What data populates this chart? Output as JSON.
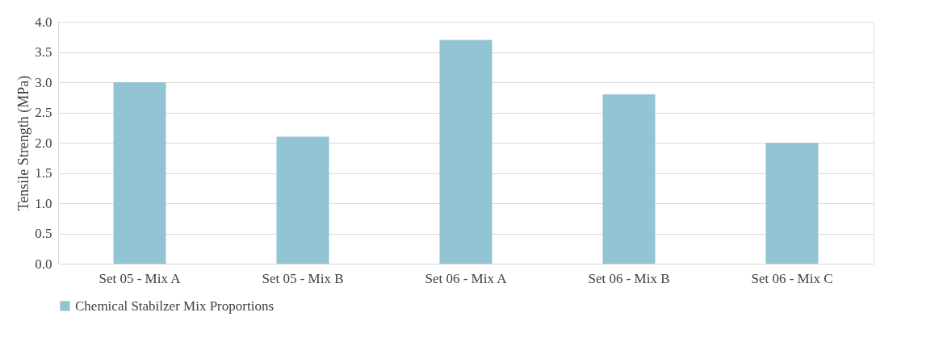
{
  "chart_data": {
    "type": "bar",
    "ylabel": "Tensile Strength (MPa)",
    "categories": [
      "Set 05 - Mix A",
      "Set 05 - Mix B",
      "Set 06 - Mix A",
      "Set 06 - Mix B",
      "Set 06 - Mix C"
    ],
    "series": [
      {
        "name": "Chemical Stabilzer Mix Proportions",
        "color": "#92c4d3",
        "values": [
          3.0,
          2.1,
          3.7,
          2.8,
          2.0
        ]
      }
    ],
    "ylim": [
      0,
      4
    ],
    "yticks": [
      {
        "value": 0,
        "label": "0.0"
      },
      {
        "value": 0.5,
        "label": "0.5"
      },
      {
        "value": 1,
        "label": "1.0"
      },
      {
        "value": 1.5,
        "label": "1.5"
      },
      {
        "value": 2,
        "label": "2.0"
      },
      {
        "value": 2.5,
        "label": "2.5"
      },
      {
        "value": 3,
        "label": "3.0"
      },
      {
        "value": 3.5,
        "label": "3.5"
      },
      {
        "value": 4,
        "label": "4.0"
      }
    ],
    "grid": "y",
    "legend": "bottom"
  }
}
